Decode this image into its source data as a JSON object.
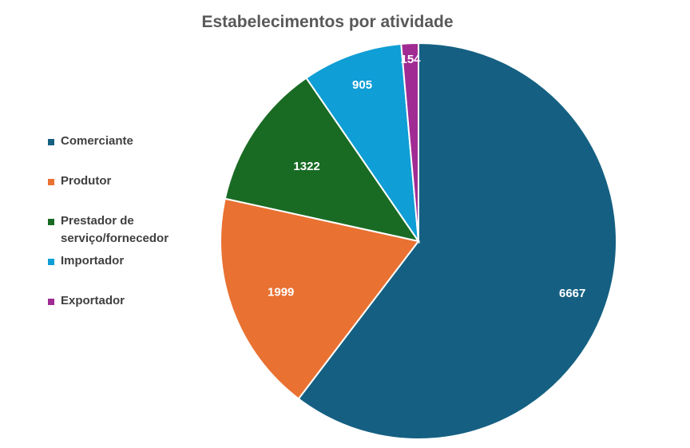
{
  "chart_data": {
    "type": "pie",
    "title": "Estabelecimentos por atividade",
    "categories": [
      "Comerciante",
      "Produtor",
      "Prestador de serviço/fornecedor",
      "Importador",
      "Exportador"
    ],
    "values": [
      6667,
      1999,
      1322,
      905,
      154
    ],
    "colors": [
      "#156082",
      "#e97132",
      "#196b24",
      "#0f9ed5",
      "#a02b93"
    ],
    "legend_position": "left",
    "data_labels": true,
    "start_angle_deg": 0,
    "direction": "clockwise"
  }
}
